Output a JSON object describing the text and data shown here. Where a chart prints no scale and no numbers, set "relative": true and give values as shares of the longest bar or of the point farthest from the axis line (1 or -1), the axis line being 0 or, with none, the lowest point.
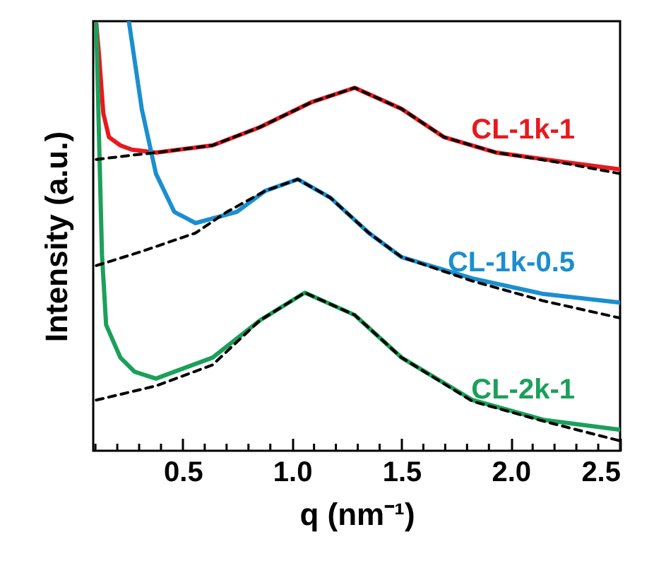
{
  "chart_data": {
    "type": "line",
    "xlabel": "q (nm⁻¹)",
    "ylabel": "Intensity (a.u.)",
    "relative": true,
    "legend": false,
    "grid": false,
    "xlim": [
      0.09,
      2.5
    ],
    "xticks": [
      {
        "value": 0.1,
        "label": null
      },
      {
        "value": 0.2,
        "label": null
      },
      {
        "value": 0.3,
        "label": null
      },
      {
        "value": 0.4,
        "label": null
      },
      {
        "value": 0.5,
        "label": "0.5"
      },
      {
        "value": 0.6,
        "label": null
      },
      {
        "value": 0.7,
        "label": null
      },
      {
        "value": 0.8,
        "label": null
      },
      {
        "value": 0.9,
        "label": null
      },
      {
        "value": 1.0,
        "label": "1.0"
      },
      {
        "value": 1.1,
        "label": null
      },
      {
        "value": 1.2,
        "label": null
      },
      {
        "value": 1.3,
        "label": null
      },
      {
        "value": 1.4,
        "label": null
      },
      {
        "value": 1.5,
        "label": "1.5"
      },
      {
        "value": 1.6,
        "label": null
      },
      {
        "value": 1.7,
        "label": null
      },
      {
        "value": 1.8,
        "label": null
      },
      {
        "value": 1.9,
        "label": null
      },
      {
        "value": 2.0,
        "label": "2.0"
      },
      {
        "value": 2.1,
        "label": null
      },
      {
        "value": 2.2,
        "label": null
      },
      {
        "value": 2.3,
        "label": null
      },
      {
        "value": 2.4,
        "label": null
      },
      {
        "value": 2.5,
        "label": "2.5"
      }
    ],
    "series": [
      {
        "name": "CL-1k-1",
        "color": "#e8191e",
        "x": [
          0.104,
          0.117,
          0.136,
          0.162,
          0.214,
          0.266,
          0.377,
          0.636,
          0.851,
          1.091,
          1.286,
          1.5,
          1.695,
          1.935,
          2.26,
          2.5
        ],
        "values": [
          0.993,
          0.918,
          0.786,
          0.73,
          0.711,
          0.701,
          0.694,
          0.711,
          0.753,
          0.812,
          0.845,
          0.796,
          0.73,
          0.694,
          0.671,
          0.655
        ]
      },
      {
        "name": "CL-1k-0.5",
        "color": "#1a8fd0",
        "x": [
          0.253,
          0.312,
          0.377,
          0.461,
          0.558,
          0.747,
          0.877,
          1.026,
          1.175,
          1.351,
          1.5,
          1.825,
          2.149,
          2.5
        ],
        "values": [
          1.0,
          0.796,
          0.645,
          0.556,
          0.53,
          0.556,
          0.605,
          0.632,
          0.589,
          0.507,
          0.451,
          0.401,
          0.365,
          0.345
        ]
      },
      {
        "name": "CL-2k-1",
        "color": "#1aa05a",
        "x": [
          0.104,
          0.117,
          0.13,
          0.149,
          0.214,
          0.279,
          0.377,
          0.636,
          0.851,
          1.058,
          1.286,
          1.5,
          1.825,
          2.149,
          2.5
        ],
        "values": [
          0.993,
          0.72,
          0.457,
          0.293,
          0.217,
          0.184,
          0.168,
          0.217,
          0.303,
          0.368,
          0.316,
          0.217,
          0.118,
          0.072,
          0.049
        ]
      },
      {
        "color": "#000000",
        "line_style": "dashed",
        "x": [
          0.104,
          0.266,
          0.377,
          0.636,
          0.851,
          1.091,
          1.286,
          1.5,
          1.695,
          1.935,
          2.26,
          2.5
        ],
        "values": [
          0.678,
          0.688,
          0.694,
          0.711,
          0.753,
          0.812,
          0.845,
          0.796,
          0.73,
          0.694,
          0.668,
          0.645
        ]
      },
      {
        "color": "#000000",
        "line_style": "dashed",
        "x": [
          0.104,
          0.312,
          0.558,
          0.701,
          0.877,
          1.026,
          1.175,
          1.351,
          1.5,
          1.825,
          2.149,
          2.5
        ],
        "values": [
          0.431,
          0.464,
          0.507,
          0.556,
          0.605,
          0.632,
          0.589,
          0.507,
          0.451,
          0.395,
          0.349,
          0.309
        ]
      },
      {
        "color": "#000000",
        "line_style": "dashed",
        "x": [
          0.104,
          0.377,
          0.636,
          0.851,
          1.058,
          1.286,
          1.5,
          1.825,
          2.149,
          2.5
        ],
        "values": [
          0.118,
          0.151,
          0.2,
          0.303,
          0.368,
          0.316,
          0.217,
          0.115,
          0.069,
          0.023
        ]
      }
    ]
  }
}
